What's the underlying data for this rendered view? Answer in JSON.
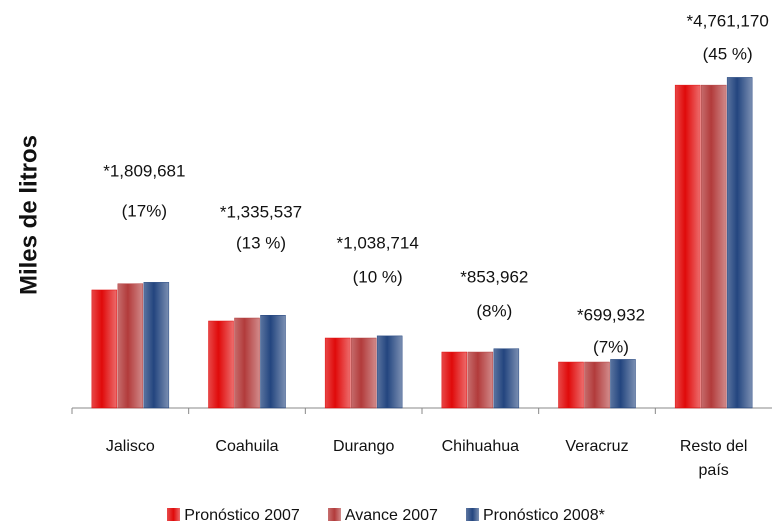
{
  "chart_data": {
    "type": "bar",
    "y_label": "Miles de litros",
    "categories": [
      "Jalisco",
      "Coahuila",
      "Durango",
      "Chihuahua",
      "Veracruz",
      "Resto del país"
    ],
    "series": [
      {
        "name": "Pronóstico 2007",
        "color": "#e00a0a",
        "values": [
          1700000,
          1253000,
          1008000,
          806000,
          662000,
          4650000
        ]
      },
      {
        "name": "Avance 2007",
        "color": "#b23b3b",
        "values": [
          1790000,
          1296000,
          1008000,
          806000,
          662000,
          4650000
        ]
      },
      {
        "name": "Pronóstico 2008*",
        "color": "#23457f",
        "values": [
          1809681,
          1335537,
          1038714,
          853962,
          699932,
          4761170
        ],
        "value_labels": [
          "*1,809,681",
          "*1,335,537",
          "*1,038,714",
          "*853,962",
          "*699,932",
          "*4,761,170"
        ]
      }
    ],
    "share_labels": [
      "(17%)",
      "(13 %)",
      "(10 %)",
      "(8%)",
      "(7%)",
      "(45 %)"
    ],
    "ylim": [
      0,
      5300000
    ]
  }
}
